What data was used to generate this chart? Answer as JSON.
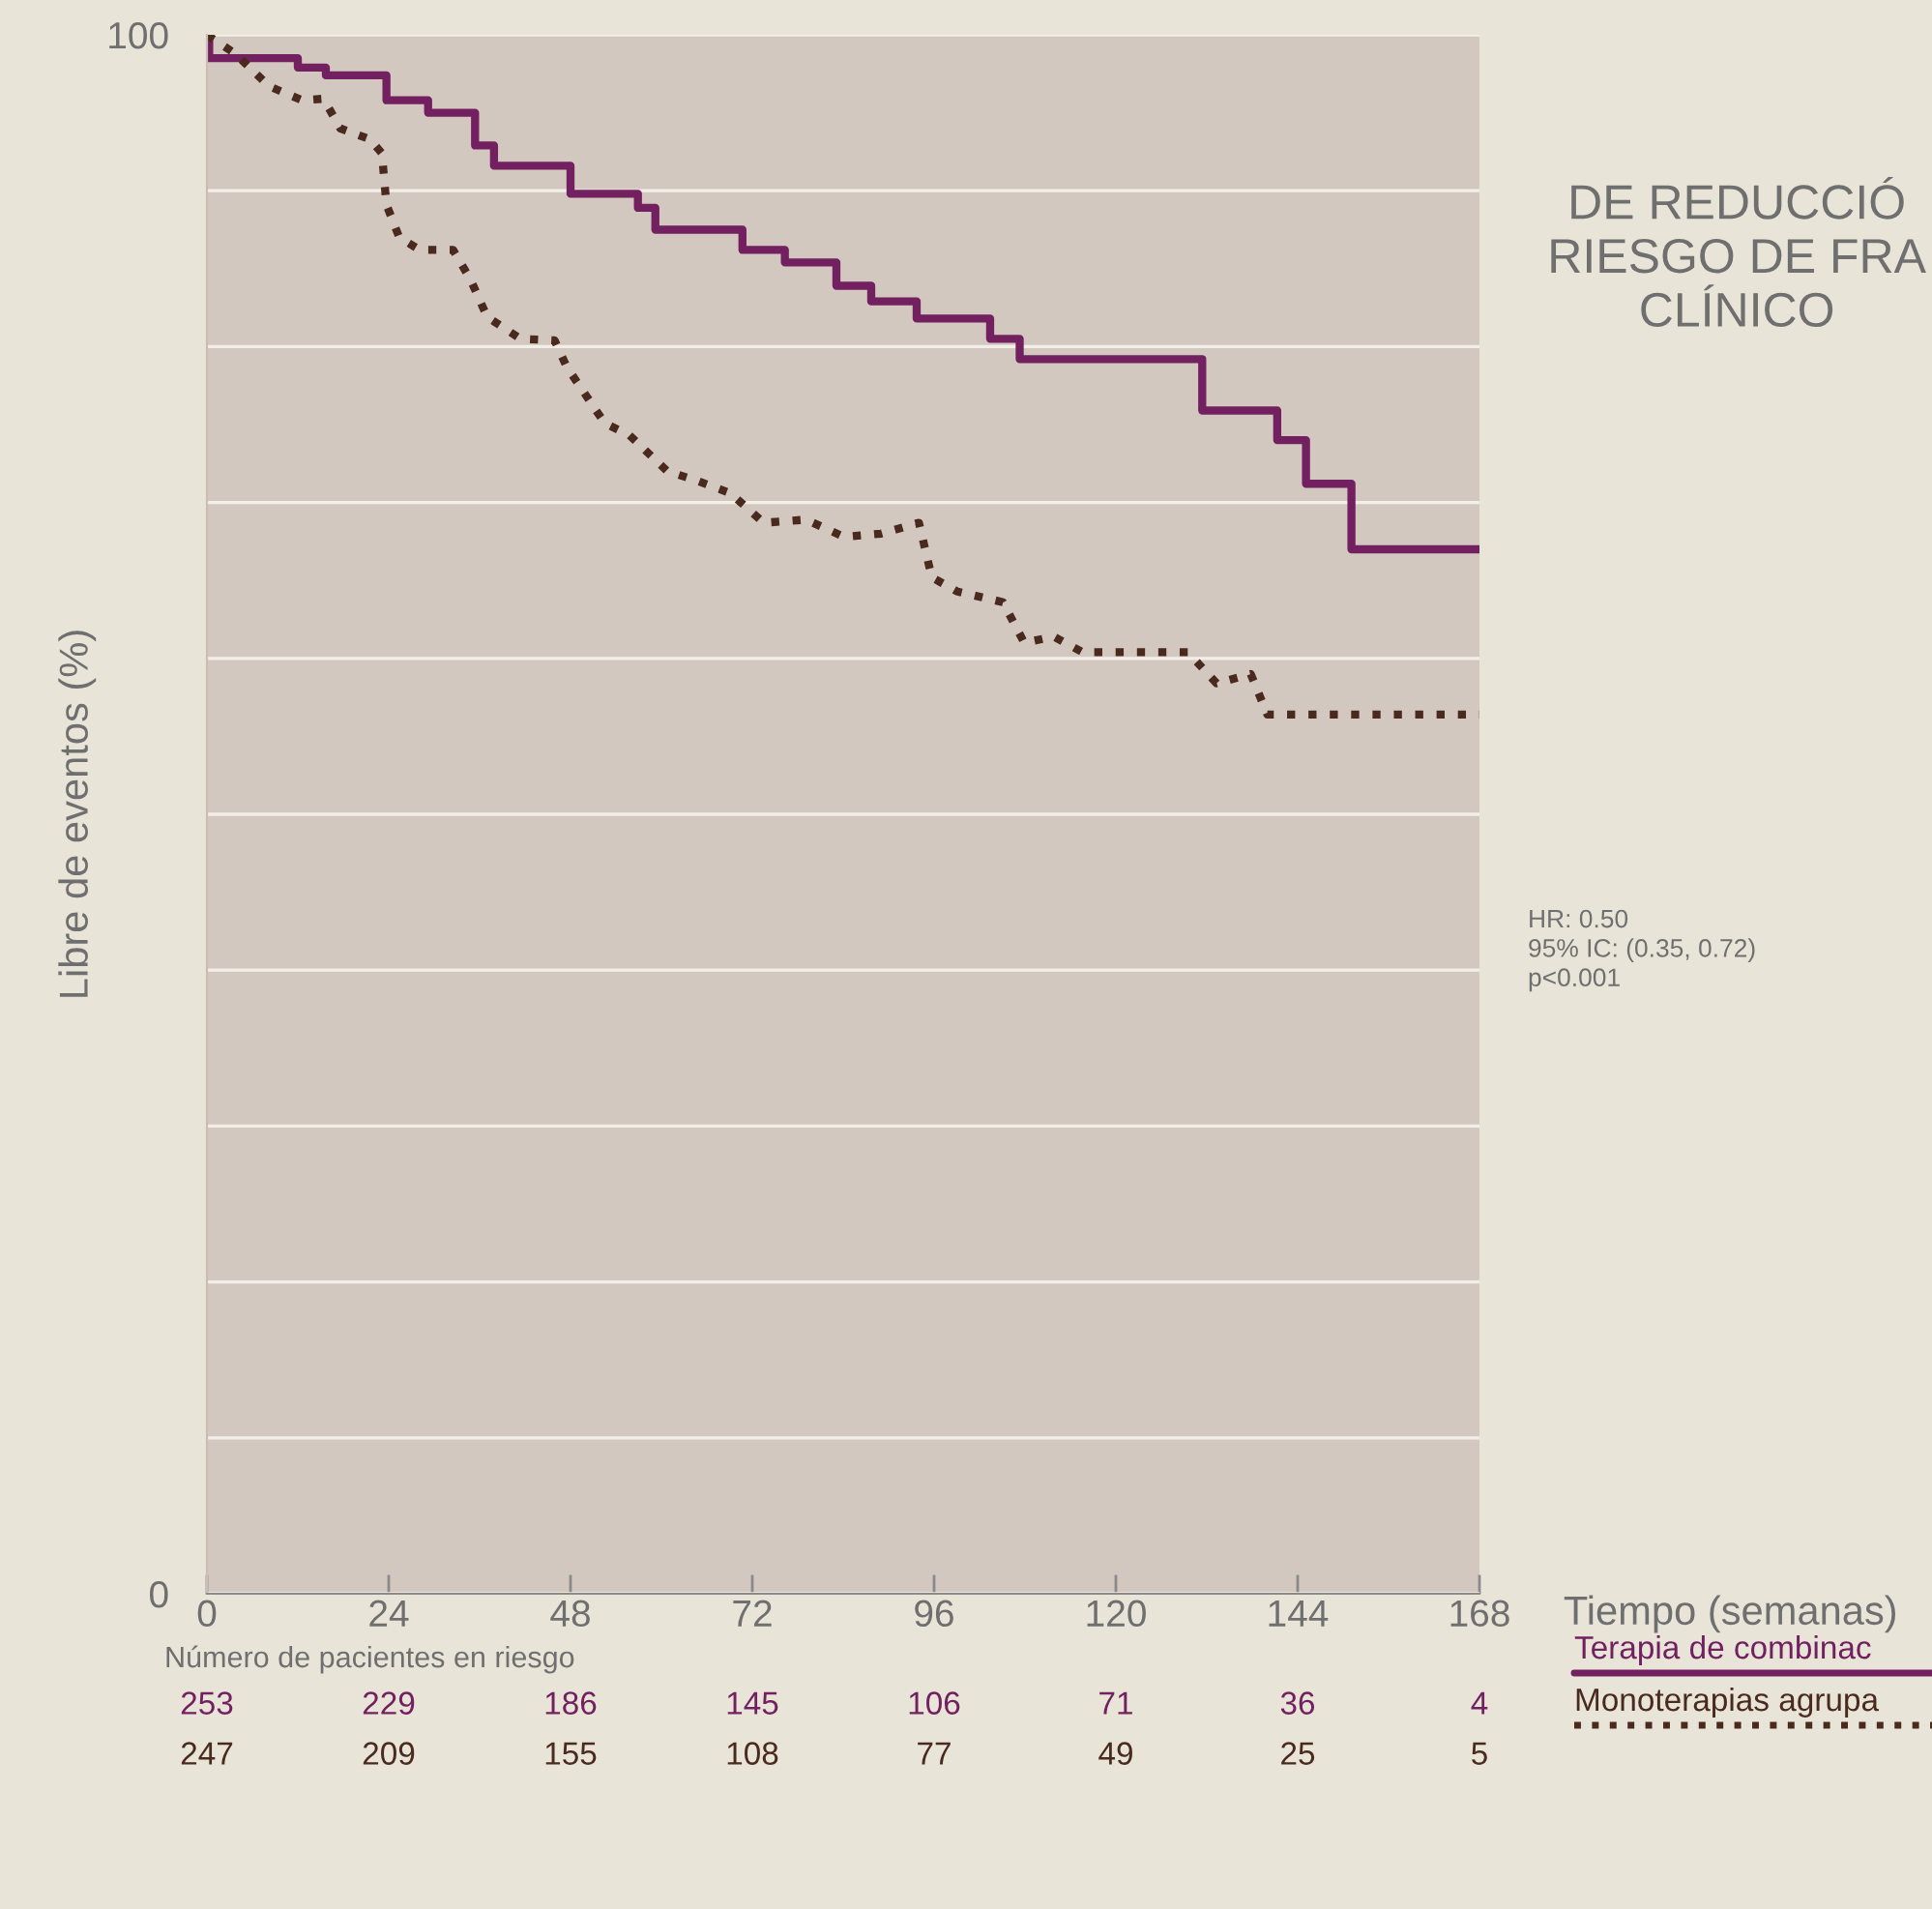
{
  "chart_data": {
    "type": "step",
    "ylabel": "Libre de eventos (%)",
    "xlabel": "Tiempo (semanas)",
    "xlim": [
      0,
      168
    ],
    "xticks": [
      0,
      24,
      48,
      72,
      96,
      120,
      144,
      168
    ],
    "ylim": [
      0,
      100
    ],
    "yticks": [
      0,
      {
        "value": 10,
        "label": null
      },
      {
        "value": 20,
        "label": null
      },
      {
        "value": 30,
        "label": null
      },
      {
        "value": 40,
        "label": null
      },
      {
        "value": 50,
        "label": null
      },
      {
        "value": 60,
        "label": null
      },
      {
        "value": 70,
        "label": null
      },
      {
        "value": 80,
        "label": null
      },
      {
        "value": 90,
        "label": null
      },
      100
    ],
    "grid": "y",
    "legend": "bottom right",
    "series": [
      {
        "name": "Terapia de combinac",
        "color": "#722060",
        "line_style": "solid",
        "x": [
          0,
          0.3,
          12,
          15.7,
          23.7,
          29.2,
          35.4,
          37.9,
          48,
          56.9,
          59.2,
          70.7,
          76.3,
          83.1,
          87.7,
          93.7,
          103.4,
          107.3,
          131.4,
          141.3,
          145.1,
          151.1,
          168
        ],
        "values": [
          100,
          98.5,
          97.9,
          97.4,
          95.8,
          95.0,
          92.9,
          91.6,
          89.8,
          88.9,
          87.5,
          86.2,
          85.4,
          83.9,
          82.9,
          81.8,
          80.5,
          79.2,
          75.9,
          74.0,
          71.2,
          67.0,
          67.0
        ]
      },
      {
        "name": "Monoterapias agrupa",
        "type": "line",
        "color": "#4a2a1e",
        "line_style": "dotted",
        "x": [
          0,
          3.7,
          8.2,
          12.6,
          15.4,
          17.6,
          21.5,
          23.1,
          23.7,
          25.4,
          28.1,
          32.5,
          34.8,
          37.0,
          41.4,
          45.9,
          47.5,
          52.5,
          55.8,
          60.8,
          64.7,
          69.1,
          73.5,
          79.1,
          84.1,
          89.0,
          94.0,
          95.7,
          99.0,
          105.1,
          107.9,
          111.8,
          115.6,
          129.5,
          133.3,
          137.8,
          140.0,
          168
        ],
        "values": [
          100,
          98.8,
          96.7,
          95.8,
          95.9,
          94.0,
          93.3,
          92.4,
          89.1,
          87.0,
          86.2,
          86.2,
          84.3,
          81.9,
          80.5,
          80.4,
          78.7,
          75.1,
          74.3,
          72.0,
          71.4,
          70.6,
          68.7,
          68.9,
          67.8,
          68.0,
          68.7,
          65.2,
          64.3,
          63.6,
          61.0,
          61.4,
          60.4,
          60.4,
          58.4,
          59.0,
          56.4,
          56.4
        ]
      }
    ],
    "annotations": [
      "DE REDUCCIÓ\nRIESGO DE FRA\nCLÍNICO",
      "HR: 0.50\n95% IC: (0.35, 0.72)\np<0.001",
      "Número de pacientes en riesgo",
      "253",
      "229",
      "186",
      "145",
      "106",
      "71",
      "36",
      "4",
      "247",
      "209",
      "155",
      "108",
      "77",
      "49",
      "25",
      "5"
    ]
  }
}
